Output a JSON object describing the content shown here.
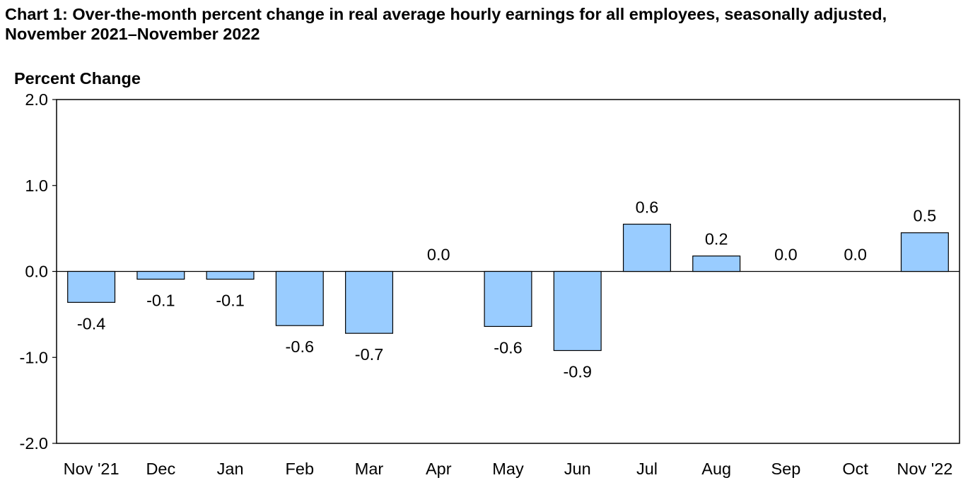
{
  "chart_data": {
    "type": "bar",
    "title": "Chart 1: Over-the-month percent change in real average hourly earnings for all employees, seasonally adjusted, November 2021–November 2022",
    "ylabel": "Percent Change",
    "xlabel": "",
    "ylim": [
      -2.0,
      2.0
    ],
    "yticks": [
      "2.0",
      "1.0",
      "0.0",
      "-1.0",
      "-2.0"
    ],
    "categories": [
      "Nov '21",
      "Dec",
      "Jan",
      "Feb",
      "Mar",
      "Apr",
      "May",
      "Jun",
      "Jul",
      "Aug",
      "Sep",
      "Oct",
      "Nov '22"
    ],
    "values": [
      -0.36,
      -0.09,
      -0.09,
      -0.63,
      -0.72,
      0.0,
      -0.64,
      -0.92,
      0.55,
      0.18,
      0.0,
      0.0,
      0.45
    ],
    "data_labels": [
      "-0.4",
      "-0.1",
      "-0.1",
      "-0.6",
      "-0.7",
      "0.0",
      "-0.6",
      "-0.9",
      "0.6",
      "0.2",
      "0.0",
      "0.0",
      "0.5"
    ],
    "bar_color": "#99CCFF",
    "bar_edge_color": "#000000",
    "grid": false,
    "legend": "none"
  }
}
